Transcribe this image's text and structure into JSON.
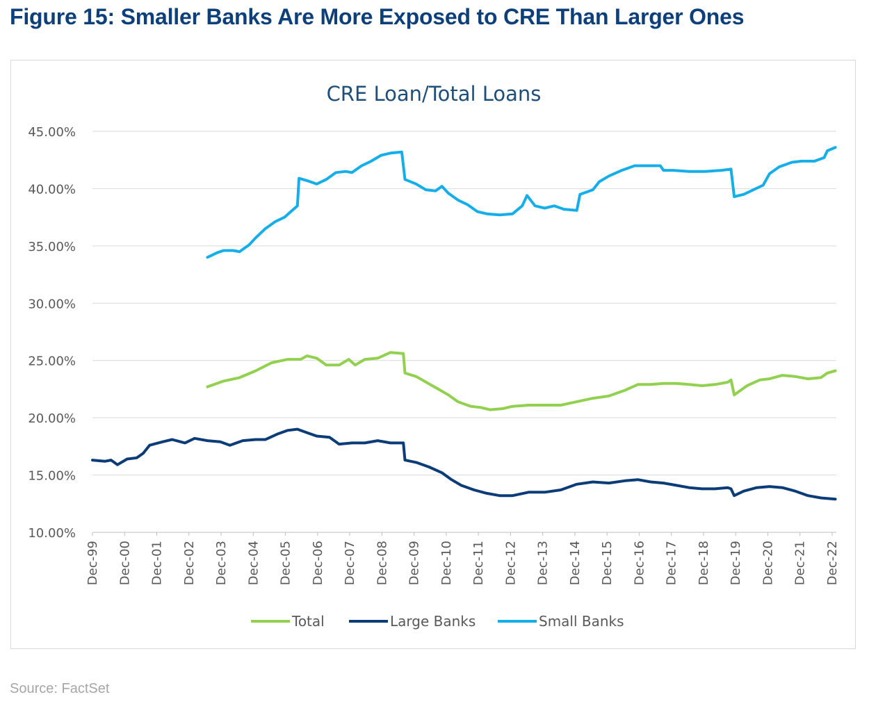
{
  "figure_title": "Figure 15: Smaller Banks Are More Exposed to CRE Than Larger Ones",
  "source": "Source: FactSet",
  "colors": {
    "total": "#92d050",
    "large": "#0b3c78",
    "small": "#16aee8",
    "title": "#0d3f7a",
    "chart_title": "#1f4e79"
  },
  "chart_data": {
    "type": "line",
    "title": "CRE Loan/Total Loans",
    "xlabel": "",
    "ylabel": "",
    "ylim": [
      10,
      45
    ],
    "xlim": [
      1999.92,
      2023.08
    ],
    "y_ticks": [
      10,
      15,
      20,
      25,
      30,
      35,
      40,
      45
    ],
    "y_tick_labels": [
      "10.00%",
      "15.00%",
      "20.00%",
      "25.00%",
      "30.00%",
      "35.00%",
      "40.00%",
      "45.00%"
    ],
    "x_tick_labels": [
      "Dec-99",
      "Dec-00",
      "Dec-01",
      "Dec-02",
      "Dec-03",
      "Dec-04",
      "Dec-05",
      "Dec-06",
      "Dec-07",
      "Dec-08",
      "Dec-09",
      "Dec-10",
      "Dec-11",
      "Dec-12",
      "Dec-13",
      "Dec-14",
      "Dec-15",
      "Dec-16",
      "Dec-17",
      "Dec-18",
      "Dec-19",
      "Dec-20",
      "Dec-21",
      "Dec-22"
    ],
    "grid": true,
    "legend_position": "bottom",
    "series": [
      {
        "name": "Total",
        "color": "#92d050",
        "points": [
          [
            2003.5,
            22.7
          ],
          [
            2004.0,
            23.2
          ],
          [
            2004.5,
            23.5
          ],
          [
            2005.0,
            24.1
          ],
          [
            2005.5,
            24.8
          ],
          [
            2006.0,
            25.1
          ],
          [
            2006.4,
            25.1
          ],
          [
            2006.6,
            25.4
          ],
          [
            2006.9,
            25.2
          ],
          [
            2007.2,
            24.6
          ],
          [
            2007.6,
            24.6
          ],
          [
            2007.9,
            25.1
          ],
          [
            2008.1,
            24.6
          ],
          [
            2008.4,
            25.1
          ],
          [
            2008.8,
            25.2
          ],
          [
            2009.2,
            25.7
          ],
          [
            2009.6,
            25.6
          ],
          [
            2009.65,
            23.9
          ],
          [
            2010.0,
            23.6
          ],
          [
            2010.5,
            22.8
          ],
          [
            2011.0,
            22.0
          ],
          [
            2011.3,
            21.4
          ],
          [
            2011.7,
            21.0
          ],
          [
            2012.0,
            20.9
          ],
          [
            2012.3,
            20.7
          ],
          [
            2012.7,
            20.8
          ],
          [
            2013.0,
            21.0
          ],
          [
            2013.5,
            21.1
          ],
          [
            2014.0,
            21.1
          ],
          [
            2014.5,
            21.1
          ],
          [
            2015.0,
            21.4
          ],
          [
            2015.5,
            21.7
          ],
          [
            2016.0,
            21.9
          ],
          [
            2016.5,
            22.4
          ],
          [
            2016.9,
            22.9
          ],
          [
            2017.3,
            22.9
          ],
          [
            2017.7,
            23.0
          ],
          [
            2018.1,
            23.0
          ],
          [
            2018.5,
            22.9
          ],
          [
            2018.9,
            22.8
          ],
          [
            2019.3,
            22.9
          ],
          [
            2019.7,
            23.1
          ],
          [
            2019.8,
            23.3
          ],
          [
            2019.9,
            22.0
          ],
          [
            2020.3,
            22.8
          ],
          [
            2020.7,
            23.3
          ],
          [
            2021.0,
            23.4
          ],
          [
            2021.4,
            23.7
          ],
          [
            2021.8,
            23.6
          ],
          [
            2022.2,
            23.4
          ],
          [
            2022.6,
            23.5
          ],
          [
            2022.8,
            23.9
          ],
          [
            2023.05,
            24.1
          ]
        ]
      },
      {
        "name": "Large Banks",
        "color": "#0b3c78",
        "points": [
          [
            1999.92,
            16.3
          ],
          [
            2000.3,
            16.2
          ],
          [
            2000.5,
            16.3
          ],
          [
            2000.7,
            15.9
          ],
          [
            2001.0,
            16.4
          ],
          [
            2001.3,
            16.5
          ],
          [
            2001.5,
            16.9
          ],
          [
            2001.7,
            17.6
          ],
          [
            2002.1,
            17.9
          ],
          [
            2002.4,
            18.1
          ],
          [
            2002.8,
            17.8
          ],
          [
            2003.1,
            18.2
          ],
          [
            2003.5,
            18.0
          ],
          [
            2003.9,
            17.9
          ],
          [
            2004.2,
            17.6
          ],
          [
            2004.6,
            18.0
          ],
          [
            2005.0,
            18.1
          ],
          [
            2005.3,
            18.1
          ],
          [
            2005.7,
            18.6
          ],
          [
            2006.0,
            18.9
          ],
          [
            2006.3,
            19.0
          ],
          [
            2006.6,
            18.7
          ],
          [
            2006.9,
            18.4
          ],
          [
            2007.3,
            18.3
          ],
          [
            2007.6,
            17.7
          ],
          [
            2008.0,
            17.8
          ],
          [
            2008.4,
            17.8
          ],
          [
            2008.8,
            18.0
          ],
          [
            2009.2,
            17.8
          ],
          [
            2009.6,
            17.8
          ],
          [
            2009.65,
            16.3
          ],
          [
            2010.0,
            16.1
          ],
          [
            2010.4,
            15.7
          ],
          [
            2010.8,
            15.2
          ],
          [
            2011.1,
            14.6
          ],
          [
            2011.4,
            14.1
          ],
          [
            2011.8,
            13.7
          ],
          [
            2012.2,
            13.4
          ],
          [
            2012.6,
            13.2
          ],
          [
            2013.0,
            13.2
          ],
          [
            2013.5,
            13.5
          ],
          [
            2014.0,
            13.5
          ],
          [
            2014.5,
            13.7
          ],
          [
            2015.0,
            14.2
          ],
          [
            2015.5,
            14.4
          ],
          [
            2016.0,
            14.3
          ],
          [
            2016.5,
            14.5
          ],
          [
            2016.9,
            14.6
          ],
          [
            2017.3,
            14.4
          ],
          [
            2017.7,
            14.3
          ],
          [
            2018.1,
            14.1
          ],
          [
            2018.5,
            13.9
          ],
          [
            2018.9,
            13.8
          ],
          [
            2019.3,
            13.8
          ],
          [
            2019.7,
            13.9
          ],
          [
            2019.8,
            13.8
          ],
          [
            2019.9,
            13.2
          ],
          [
            2020.2,
            13.6
          ],
          [
            2020.6,
            13.9
          ],
          [
            2021.0,
            14.0
          ],
          [
            2021.4,
            13.9
          ],
          [
            2021.8,
            13.6
          ],
          [
            2022.2,
            13.2
          ],
          [
            2022.6,
            13.0
          ],
          [
            2023.05,
            12.9
          ]
        ]
      },
      {
        "name": "Small Banks",
        "color": "#16aee8",
        "points": [
          [
            2003.5,
            34.0
          ],
          [
            2003.8,
            34.4
          ],
          [
            2004.0,
            34.6
          ],
          [
            2004.3,
            34.6
          ],
          [
            2004.5,
            34.5
          ],
          [
            2004.8,
            35.1
          ],
          [
            2005.0,
            35.7
          ],
          [
            2005.3,
            36.5
          ],
          [
            2005.6,
            37.1
          ],
          [
            2005.9,
            37.5
          ],
          [
            2006.1,
            38.0
          ],
          [
            2006.3,
            38.5
          ],
          [
            2006.35,
            40.9
          ],
          [
            2006.6,
            40.7
          ],
          [
            2006.9,
            40.4
          ],
          [
            2007.2,
            40.8
          ],
          [
            2007.5,
            41.4
          ],
          [
            2007.8,
            41.5
          ],
          [
            2008.0,
            41.4
          ],
          [
            2008.3,
            42.0
          ],
          [
            2008.6,
            42.4
          ],
          [
            2008.9,
            42.9
          ],
          [
            2009.2,
            43.1
          ],
          [
            2009.55,
            43.2
          ],
          [
            2009.65,
            40.8
          ],
          [
            2010.0,
            40.4
          ],
          [
            2010.3,
            39.9
          ],
          [
            2010.6,
            39.8
          ],
          [
            2010.8,
            40.2
          ],
          [
            2011.0,
            39.6
          ],
          [
            2011.3,
            39.0
          ],
          [
            2011.6,
            38.6
          ],
          [
            2011.9,
            38.0
          ],
          [
            2012.2,
            37.8
          ],
          [
            2012.6,
            37.7
          ],
          [
            2013.0,
            37.8
          ],
          [
            2013.3,
            38.5
          ],
          [
            2013.45,
            39.4
          ],
          [
            2013.7,
            38.5
          ],
          [
            2014.0,
            38.3
          ],
          [
            2014.3,
            38.5
          ],
          [
            2014.6,
            38.2
          ],
          [
            2015.0,
            38.1
          ],
          [
            2015.1,
            39.5
          ],
          [
            2015.5,
            39.9
          ],
          [
            2015.7,
            40.6
          ],
          [
            2016.0,
            41.1
          ],
          [
            2016.4,
            41.6
          ],
          [
            2016.8,
            42.0
          ],
          [
            2017.2,
            42.0
          ],
          [
            2017.6,
            42.0
          ],
          [
            2017.7,
            41.6
          ],
          [
            2018.0,
            41.6
          ],
          [
            2018.5,
            41.5
          ],
          [
            2019.0,
            41.5
          ],
          [
            2019.5,
            41.6
          ],
          [
            2019.8,
            41.7
          ],
          [
            2019.9,
            39.3
          ],
          [
            2020.2,
            39.5
          ],
          [
            2020.5,
            39.9
          ],
          [
            2020.8,
            40.3
          ],
          [
            2021.0,
            41.3
          ],
          [
            2021.3,
            41.9
          ],
          [
            2021.7,
            42.3
          ],
          [
            2022.0,
            42.4
          ],
          [
            2022.4,
            42.4
          ],
          [
            2022.7,
            42.7
          ],
          [
            2022.8,
            43.3
          ],
          [
            2023.05,
            43.6
          ]
        ]
      }
    ]
  }
}
